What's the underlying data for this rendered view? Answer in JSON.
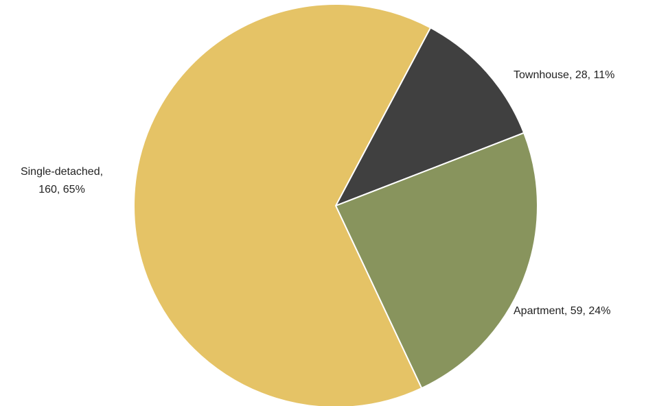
{
  "chart_data": {
    "type": "pie",
    "title": "",
    "start_angle_deg": 28,
    "direction": "clockwise",
    "slices": [
      {
        "name": "Townhouse",
        "value": 28,
        "percent": "11%",
        "color": "#404040",
        "label_lines": [
          "Townhouse, 28, 11%"
        ]
      },
      {
        "name": "Apartment",
        "value": 59,
        "percent": "24%",
        "color": "#88945d",
        "label_lines": [
          "Apartment, 59, 24%"
        ]
      },
      {
        "name": "Single-detached",
        "value": 160,
        "percent": "65%",
        "color": "#e5c366",
        "label_lines": [
          "Single-detached,",
          "160, 65%"
        ]
      }
    ],
    "legend": "none"
  }
}
